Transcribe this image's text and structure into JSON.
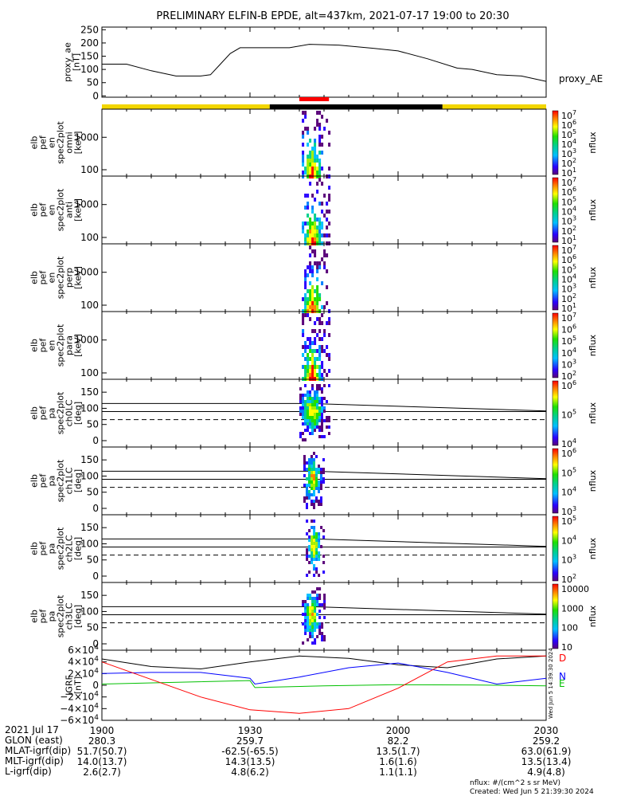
{
  "title": "PRELIMINARY ELFIN-B EPDE, alt=437km, 2021-07-17 19:00 to 20:30",
  "colors": {
    "day_bar": "#f2d600",
    "night_bar": "#000000",
    "science_bar": "#ff0000",
    "n_comp": "#0000ff",
    "e_comp": "#00c000",
    "d_comp": "#ff0000"
  },
  "chart_data": [
    {
      "type": "line",
      "panel": "proxy_ae",
      "ylabel": "proxy_ae [nT]",
      "side_label": "proxy_AE",
      "ylim": [
        -5,
        260
      ],
      "yticks": [
        "250",
        "200",
        "150",
        "100",
        "50",
        "0"
      ],
      "x": [
        0,
        5,
        10,
        15,
        20,
        22,
        24,
        26,
        28,
        33,
        38,
        42,
        48,
        55,
        60,
        66,
        72,
        75,
        80,
        85,
        90
      ],
      "values": [
        120,
        120,
        95,
        75,
        75,
        80,
        120,
        160,
        182,
        182,
        182,
        195,
        192,
        180,
        170,
        140,
        105,
        100,
        80,
        75,
        55
      ]
    },
    {
      "type": "heatmap",
      "panel": "spec_omni",
      "ylabel": [
        "elb",
        "pef",
        "en",
        "spec2plot",
        "omni",
        "[keV]"
      ],
      "yticks": [
        "1000",
        "100"
      ],
      "zlabel": "nflux",
      "zticks": [
        "10^7",
        "10^6",
        "10^5",
        "10^4",
        "10^3",
        "10^2",
        "10^1"
      ]
    },
    {
      "type": "heatmap",
      "panel": "spec_anti",
      "ylabel": [
        "elb",
        "pef",
        "en",
        "spec2plot",
        "anti",
        "[keV]"
      ],
      "yticks": [
        "1000",
        "100"
      ],
      "zlabel": "nflux",
      "zticks": [
        "10^7",
        "10^6",
        "10^5",
        "10^4",
        "10^3",
        "10^2",
        "10^1"
      ]
    },
    {
      "type": "heatmap",
      "panel": "spec_perp",
      "ylabel": [
        "elb",
        "pef",
        "en",
        "spec2plot",
        "perp",
        "[keV]"
      ],
      "yticks": [
        "1000",
        "100"
      ],
      "zlabel": "nflux",
      "zticks": [
        "10^7",
        "10^6",
        "10^5",
        "10^4",
        "10^3",
        "10^2",
        "10^1"
      ]
    },
    {
      "type": "heatmap",
      "panel": "spec_para",
      "ylabel": [
        "elb",
        "pef",
        "en",
        "spec2plot",
        "para",
        "[keV]"
      ],
      "yticks": [
        "1000",
        "100"
      ],
      "zlabel": "nflux",
      "zticks": [
        "10^7",
        "10^6",
        "10^5",
        "10^4",
        "10^3",
        "10^2"
      ]
    },
    {
      "type": "heatmap",
      "panel": "pa_ch0",
      "ylabel": [
        "elb",
        "pef",
        "pa",
        "spec2plot",
        "ch0LC",
        "[deg]"
      ],
      "yticks": [
        "150",
        "100",
        "50",
        "0"
      ],
      "zlabel": "nflux",
      "zticks": [
        "10^6",
        "10^5",
        "10^4"
      ]
    },
    {
      "type": "heatmap",
      "panel": "pa_ch1",
      "ylabel": [
        "elb",
        "pef",
        "pa",
        "spec2plot",
        "ch1LC",
        "[deg]"
      ],
      "yticks": [
        "150",
        "100",
        "50",
        "0"
      ],
      "zlabel": "nflux",
      "zticks": [
        "10^6",
        "10^5",
        "10^4",
        "10^3"
      ]
    },
    {
      "type": "heatmap",
      "panel": "pa_ch2",
      "ylabel": [
        "elb",
        "pef",
        "pa",
        "spec2plot",
        "ch2LC",
        "[deg]"
      ],
      "yticks": [
        "150",
        "100",
        "50",
        "0"
      ],
      "zlabel": "nflux",
      "zticks": [
        "10^5",
        "10^4",
        "10^3",
        "10^2"
      ]
    },
    {
      "type": "heatmap",
      "panel": "pa_ch3",
      "ylabel": [
        "elb",
        "pef",
        "pa",
        "spec2plot",
        "ch3LC",
        "[deg]"
      ],
      "yticks": [
        "150",
        "100",
        "50",
        "0"
      ],
      "zlabel": "nflux",
      "zticks": [
        "10000",
        "1000",
        "100",
        "10"
      ]
    },
    {
      "type": "line",
      "panel": "igrf",
      "ylabel": [
        "IGRF",
        "[nT]"
      ],
      "yticks": [
        "6×10^4",
        "4×10^4",
        "2×10^4",
        "0",
        "−2×10^4",
        "−4×10^4",
        "−6×10^4"
      ],
      "side_labels": [
        "D",
        "N",
        "E"
      ],
      "stamp": "Wed Jun  5 14:39:30 2024",
      "ylim": [
        -60000,
        60000
      ],
      "series": [
        {
          "name": "total",
          "color": "#000000",
          "x": [
            0,
            10,
            20,
            30,
            40,
            50,
            60,
            70,
            80,
            90
          ],
          "values": [
            45000,
            32000,
            28000,
            40000,
            50000,
            46000,
            35000,
            30000,
            45000,
            50000
          ]
        },
        {
          "name": "N",
          "color": "#0000ff",
          "x": [
            0,
            10,
            20,
            30,
            31,
            40,
            50,
            60,
            70,
            80,
            90
          ],
          "values": [
            20000,
            22000,
            22000,
            12000,
            2000,
            14000,
            30000,
            38000,
            22000,
            2000,
            12000
          ]
        },
        {
          "name": "E",
          "color": "#00c000",
          "x": [
            0,
            30,
            31,
            45,
            60,
            75,
            90
          ],
          "values": [
            2000,
            8000,
            -4000,
            -1000,
            1000,
            500,
            -1000
          ]
        },
        {
          "name": "D",
          "color": "#ff0000",
          "x": [
            0,
            10,
            20,
            30,
            40,
            50,
            60,
            70,
            80,
            90
          ],
          "values": [
            40000,
            10000,
            -20000,
            -42000,
            -48000,
            -40000,
            -5000,
            40000,
            50000,
            50000
          ]
        }
      ]
    }
  ],
  "xaxis": {
    "row_labels": [
      "2021 Jul 17",
      "GLON (east)",
      "MLAT-igrf(dip)",
      "MLT-igrf(dip)",
      "L-igrf(dip)"
    ],
    "columns": [
      {
        "time": "1900",
        "glon": "280.3",
        "mlat": "51.7(50.7)",
        "mlt": "14.0(13.7)",
        "l": "2.6(2.7)"
      },
      {
        "time": "1930",
        "glon": "259.7",
        "mlat": "-62.5(-65.5)",
        "mlt": "14.3(13.5)",
        "l": "4.8(6.2)"
      },
      {
        "time": "2000",
        "glon": "82.2",
        "mlat": "13.5(1.7)",
        "mlt": "1.6(1.6)",
        "l": "1.1(1.1)"
      },
      {
        "time": "2030",
        "glon": "259.2",
        "mlat": "63.0(61.9)",
        "mlt": "13.5(13.4)",
        "l": "4.9(4.8)"
      }
    ]
  },
  "footer": {
    "units": "nflux: #/(cm^2 s sr MeV)",
    "created": "Created: Wed Jun  5 21:39:30 2024"
  }
}
